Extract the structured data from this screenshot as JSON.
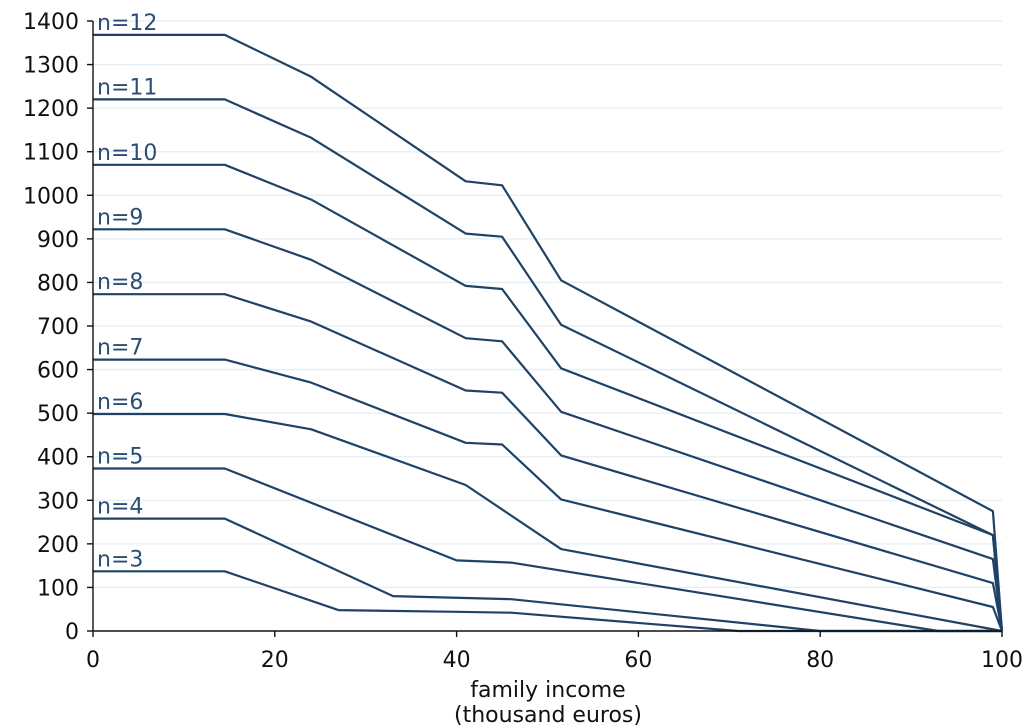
{
  "chart_data": {
    "type": "line",
    "xlabel": [
      "family income",
      "(thousand euros)"
    ],
    "ylabel": "",
    "xlim": [
      0,
      100
    ],
    "ylim": [
      0,
      1400
    ],
    "x_ticks": [
      0,
      20,
      40,
      60,
      80,
      100
    ],
    "y_ticks": [
      0,
      100,
      200,
      300,
      400,
      500,
      600,
      700,
      800,
      900,
      1000,
      1100,
      1200,
      1300,
      1400
    ],
    "grid": "horizontal",
    "legend": "none",
    "colors": {
      "line": "#1f4266",
      "label": "#2a4e75",
      "grid": "#e6eef2",
      "axis": "#111111"
    },
    "series": [
      {
        "name": "n=3",
        "points": [
          [
            0,
            137
          ],
          [
            14.5,
            137
          ],
          [
            27,
            48
          ],
          [
            40,
            44
          ],
          [
            46,
            42
          ],
          [
            71,
            0
          ],
          [
            100,
            0
          ]
        ]
      },
      {
        "name": "n=4",
        "points": [
          [
            0,
            258
          ],
          [
            14.5,
            258
          ],
          [
            33,
            80
          ],
          [
            46,
            73
          ],
          [
            80,
            0
          ],
          [
            100,
            0
          ]
        ]
      },
      {
        "name": "n=5",
        "points": [
          [
            0,
            373
          ],
          [
            14.5,
            373
          ],
          [
            40,
            162
          ],
          [
            46,
            157
          ],
          [
            93,
            0
          ],
          [
            100,
            0
          ]
        ]
      },
      {
        "name": "n=6",
        "points": [
          [
            0,
            498
          ],
          [
            14.5,
            498
          ],
          [
            24,
            463
          ],
          [
            41,
            335
          ],
          [
            51.5,
            188
          ],
          [
            100,
            0
          ]
        ]
      },
      {
        "name": "n=7",
        "points": [
          [
            0,
            623
          ],
          [
            14.5,
            623
          ],
          [
            24,
            570
          ],
          [
            41,
            432
          ],
          [
            45,
            428
          ],
          [
            51.5,
            302
          ],
          [
            99,
            55
          ],
          [
            100,
            0
          ]
        ]
      },
      {
        "name": "n=8",
        "points": [
          [
            0,
            773
          ],
          [
            14.5,
            773
          ],
          [
            24,
            710
          ],
          [
            41,
            552
          ],
          [
            45,
            547
          ],
          [
            51.5,
            403
          ],
          [
            99,
            110
          ],
          [
            100,
            0
          ]
        ]
      },
      {
        "name": "n=9",
        "points": [
          [
            0,
            922
          ],
          [
            14.5,
            922
          ],
          [
            24,
            852
          ],
          [
            41,
            672
          ],
          [
            45,
            665
          ],
          [
            51.5,
            503
          ],
          [
            99,
            165
          ],
          [
            100,
            0
          ]
        ]
      },
      {
        "name": "n=10",
        "points": [
          [
            0,
            1070
          ],
          [
            14.5,
            1070
          ],
          [
            24,
            990
          ],
          [
            41,
            792
          ],
          [
            45,
            785
          ],
          [
            51.5,
            603
          ],
          [
            99,
            220
          ],
          [
            100,
            0
          ]
        ]
      },
      {
        "name": "n=11",
        "points": [
          [
            0,
            1220
          ],
          [
            14.5,
            1220
          ],
          [
            24,
            1132
          ],
          [
            41,
            912
          ],
          [
            45,
            905
          ],
          [
            51.5,
            703
          ],
          [
            99,
            220
          ],
          [
            100,
            0
          ]
        ]
      },
      {
        "name": "n=12",
        "points": [
          [
            0,
            1368
          ],
          [
            14.5,
            1368
          ],
          [
            24,
            1272
          ],
          [
            41,
            1032
          ],
          [
            45,
            1023
          ],
          [
            51.5,
            805
          ],
          [
            99,
            275
          ],
          [
            100,
            0
          ]
        ]
      }
    ]
  }
}
